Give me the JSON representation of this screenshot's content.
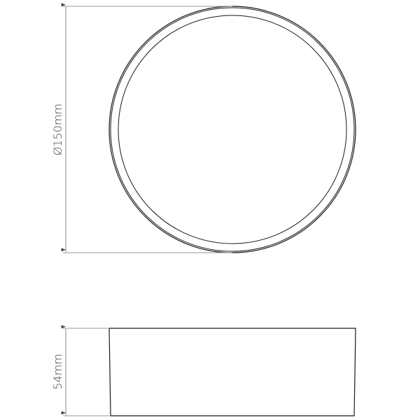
{
  "top_view": {
    "diameter_label": "Ø150mm"
  },
  "side_view": {
    "height_label": "54mm"
  },
  "colors": {
    "outline": "#1a1a1a",
    "dimension": "#9a9a9a",
    "text": "#444444"
  }
}
